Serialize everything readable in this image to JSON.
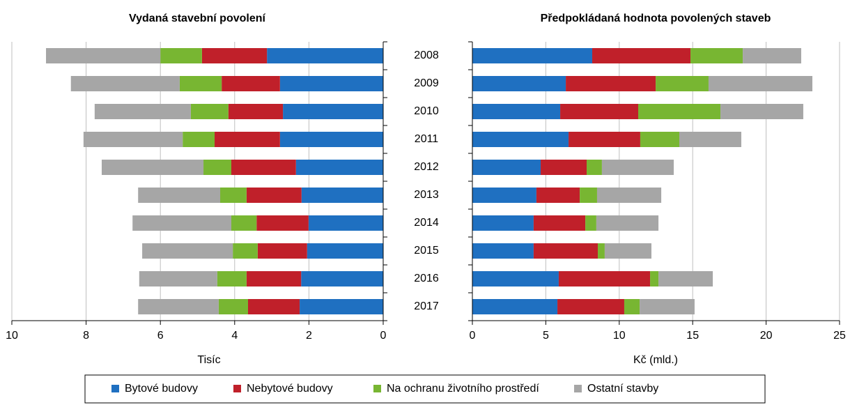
{
  "chart_data": [
    {
      "type": "bar",
      "orientation": "horizontal",
      "stacked": true,
      "title": "Vydaná stavební povolení",
      "xlabel": "Tisíc",
      "categories": [
        "2008",
        "2009",
        "2010",
        "2011",
        "2012",
        "2013",
        "2014",
        "2015",
        "2016",
        "2017"
      ],
      "xlim": [
        0,
        10
      ],
      "xticks": [
        0,
        2,
        4,
        6,
        8,
        10
      ],
      "reversed": true,
      "grid": true,
      "legend": "bottom",
      "series": [
        {
          "name": "Bytové budovy",
          "color": "#1f70c1",
          "values": [
            3.13,
            2.78,
            2.7,
            2.78,
            2.35,
            2.2,
            2.01,
            2.05,
            2.21,
            2.25
          ]
        },
        {
          "name": "Nebytové budovy",
          "color": "#c0202a",
          "values": [
            1.75,
            1.57,
            1.47,
            1.76,
            1.74,
            1.48,
            1.4,
            1.33,
            1.47,
            1.39
          ]
        },
        {
          "name": "Na ochranu životního prostředí",
          "color": "#78b632",
          "values": [
            1.12,
            1.13,
            1.01,
            0.86,
            0.75,
            0.71,
            0.68,
            0.67,
            0.79,
            0.79
          ]
        },
        {
          "name": "Ostatní stavby",
          "color": "#a6a6a6",
          "values": [
            3.08,
            2.93,
            2.59,
            2.67,
            2.74,
            2.21,
            2.66,
            2.44,
            2.1,
            2.17
          ]
        }
      ]
    },
    {
      "type": "bar",
      "orientation": "horizontal",
      "stacked": true,
      "title": "Předpokládaná hodnota povolených staveb",
      "xlabel": "Kč (mld.)",
      "categories": [
        "2008",
        "2009",
        "2010",
        "2011",
        "2012",
        "2013",
        "2014",
        "2015",
        "2016",
        "2017"
      ],
      "xlim": [
        0,
        25
      ],
      "xticks": [
        0,
        5,
        10,
        15,
        20,
        25
      ],
      "reversed": false,
      "grid": true,
      "series": [
        {
          "name": "Bytové budovy",
          "color": "#1f70c1",
          "values": [
            8.16,
            6.36,
            5.98,
            6.55,
            4.65,
            4.36,
            4.17,
            4.17,
            5.88,
            5.79
          ]
        },
        {
          "name": "Nebytové budovy",
          "color": "#c0202a",
          "values": [
            6.69,
            6.12,
            5.31,
            4.88,
            3.13,
            2.95,
            3.52,
            4.37,
            6.22,
            4.55
          ]
        },
        {
          "name": "Na ochranu životního prostředí",
          "color": "#78b632",
          "values": [
            3.56,
            3.6,
            5.6,
            2.66,
            1.04,
            1.18,
            0.75,
            0.47,
            0.57,
            1.05
          ]
        },
        {
          "name": "Ostatní stavby",
          "color": "#a6a6a6",
          "values": [
            3.98,
            7.07,
            5.64,
            4.22,
            4.89,
            4.37,
            4.23,
            3.18,
            3.7,
            3.74
          ]
        }
      ]
    }
  ]
}
